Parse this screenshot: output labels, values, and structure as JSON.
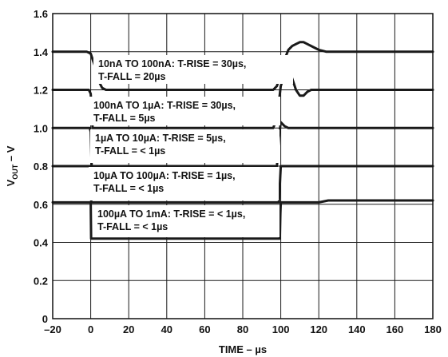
{
  "chart_data": {
    "type": "line",
    "xlabel": "TIME – µs",
    "ylabel_main": "V",
    "ylabel_sub": "OUT",
    "ylabel_suffix": " – V",
    "xlim": [
      -20,
      180
    ],
    "ylim": [
      0,
      1.6
    ],
    "x_ticks": [
      -20,
      0,
      20,
      40,
      60,
      80,
      100,
      120,
      140,
      160,
      180
    ],
    "y_ticks": [
      0,
      0.2,
      0.4,
      0.6,
      0.8,
      1.0,
      1.2,
      1.4,
      1.6
    ],
    "y_tick_labels": [
      "0",
      "0.2",
      "0.4",
      "0.6",
      "0.8",
      "1.0",
      "1.2",
      "1.4",
      "1.6"
    ],
    "grid": true,
    "series": [
      {
        "x": [
          -20,
          -2,
          0,
          2,
          4,
          6,
          8,
          10,
          12,
          14,
          96,
          98,
          100,
          102,
          104,
          106,
          108,
          110,
          112,
          114,
          116,
          118,
          120,
          122,
          124,
          130,
          140,
          160,
          180
        ],
        "y": [
          1.4,
          1.4,
          1.39,
          1.33,
          1.25,
          1.21,
          1.2,
          1.2,
          1.2,
          1.2,
          1.2,
          1.22,
          1.29,
          1.36,
          1.41,
          1.43,
          1.44,
          1.45,
          1.45,
          1.44,
          1.43,
          1.42,
          1.41,
          1.405,
          1.4,
          1.4,
          1.4,
          1.4,
          1.4
        ]
      },
      {
        "x": [
          -20,
          -1,
          0,
          1,
          96,
          98,
          100,
          102,
          104,
          106,
          108,
          110,
          112,
          114,
          116,
          118,
          120,
          180
        ],
        "y": [
          1.2,
          1.2,
          1.18,
          1.0,
          1.0,
          1.05,
          1.22,
          1.28,
          1.29,
          1.26,
          1.2,
          1.17,
          1.17,
          1.19,
          1.2,
          1.2,
          1.2,
          1.2
        ]
      },
      {
        "x": [
          -20,
          -0.5,
          0,
          0.5,
          98,
          99,
          100,
          102,
          104,
          180
        ],
        "y": [
          1.0,
          1.0,
          0.98,
          0.8,
          0.8,
          0.95,
          1.03,
          1.01,
          1.0,
          1.0
        ]
      },
      {
        "x": [
          -20,
          0,
          0.3,
          99,
          99.5,
          100,
          180
        ],
        "y": [
          0.8,
          0.8,
          0.61,
          0.61,
          0.7,
          0.8,
          0.8
        ]
      },
      {
        "x": [
          -20,
          0,
          0.2,
          99.5,
          99.8,
          100,
          120,
          125,
          180
        ],
        "y": [
          0.61,
          0.61,
          0.42,
          0.42,
          0.55,
          0.61,
          0.61,
          0.62,
          0.62
        ]
      }
    ],
    "annotations": [
      {
        "lines": [
          "10nA TO 100nA: T-RISE = 30µs,",
          "T-FALL = 20µs"
        ]
      },
      {
        "lines": [
          "100nA TO  1µA: T-RISE = 30µs,",
          "T-FALL =  5µs"
        ]
      },
      {
        "lines": [
          "1µA  TO 10µA: T-RISE = 5µs,",
          "T-FALL = < 1µs"
        ]
      },
      {
        "lines": [
          "10µA TO 100µA:  T-RISE = 1µs,",
          "T-FALL = < 1µs"
        ]
      },
      {
        "lines": [
          "100µA TO 1mA:  T-RISE = < 1µs,",
          "T-FALL = < 1µs"
        ]
      }
    ]
  }
}
